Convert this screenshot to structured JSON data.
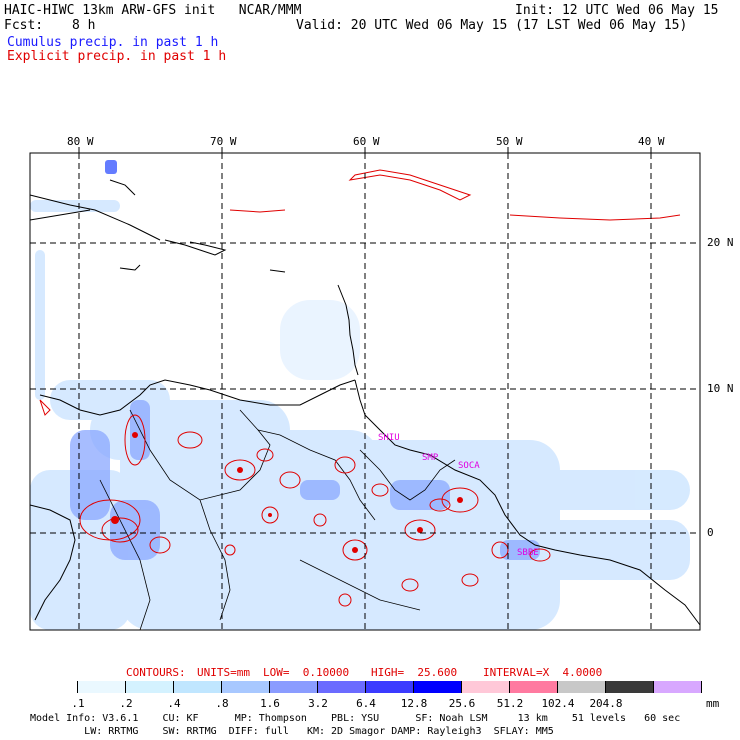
{
  "header": {
    "title_left": "HAIC-HIWC 13km ARW-GFS init   NCAR/MMM",
    "init": "Init: 12 UTC Wed 06 May 15",
    "fcst_label": "Fcst:",
    "fcst_value": "8 h",
    "valid": "Valid: 20 UTC Wed 06 May 15 (17 LST Wed 06 May 15)",
    "legend_cumulus": "Cumulus precip. in past 1 h",
    "legend_explicit": "Explicit precip. in past 1 h"
  },
  "map": {
    "lon_labels": [
      "80 W",
      "70 W",
      "60 W",
      "50 W",
      "40 W"
    ],
    "lat_labels": [
      "20 N",
      "10 N",
      "0"
    ],
    "stations": [
      "SHIU",
      "SMP",
      "SOCA",
      "SBBE"
    ]
  },
  "contours": {
    "prefix": "CONTOURS:",
    "units": "UNITS=mm",
    "low": "LOW=  0.10000",
    "high": "HIGH=  25.600",
    "interval": "INTERVAL=X  4.0000"
  },
  "colorbar": {
    "labels": [
      ".1",
      ".2",
      ".4",
      ".8",
      "1.6",
      "3.2",
      "6.4",
      "12.8",
      "25.6",
      "51.2",
      "102.4",
      "204.8"
    ],
    "unit": "mm",
    "colors": [
      "#ffffff",
      "#eaf8ff",
      "#d4f2ff",
      "#c0e6ff",
      "#a8c8ff",
      "#8a9cff",
      "#6b6bff",
      "#3b3bff",
      "#0000ff",
      "#ffc8d8",
      "#ff7aa0",
      "#c8c8c8",
      "#3a3a3a",
      "#d8a8ff"
    ]
  },
  "footer": {
    "line1": "Model Info: V3.6.1    CU: KF      MP: Thompson    PBL: YSU      SF: Noah LSM     13 km    51 levels   60 sec",
    "line2": "         LW: RRTMG    SW: RRTMG  DIFF: full   KM: 2D Smagor DAMP: Rayleigh3  SFLAY: MM5"
  }
}
